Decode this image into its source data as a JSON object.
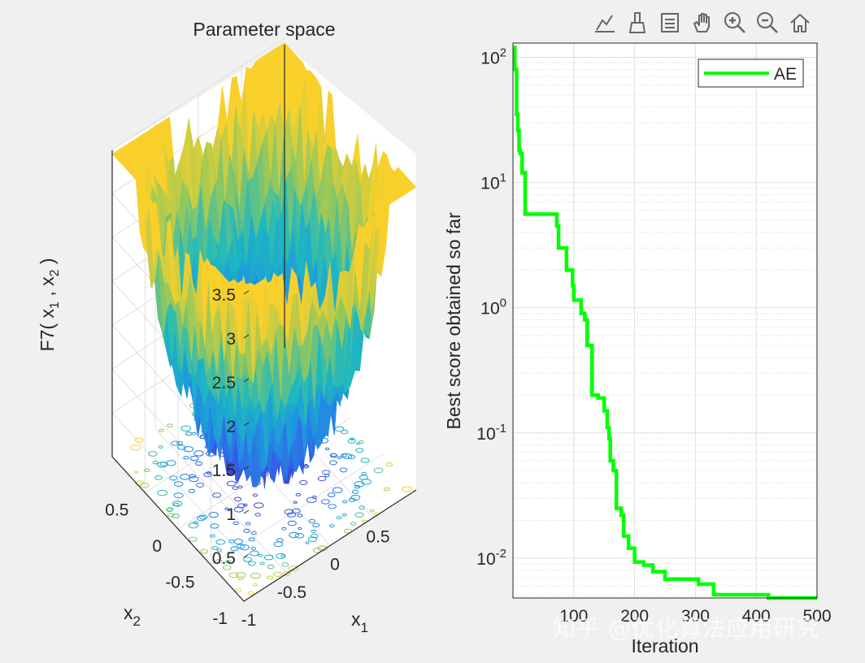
{
  "toolbar": {
    "items": [
      {
        "icon": "data-tips-icon"
      },
      {
        "icon": "brush-icon"
      },
      {
        "icon": "legend-toggle-icon"
      },
      {
        "icon": "pan-hand-icon"
      },
      {
        "icon": "zoom-in-icon"
      },
      {
        "icon": "zoom-out-icon"
      },
      {
        "icon": "home-icon"
      }
    ]
  },
  "watermark": "知乎 @优化算法应用研究",
  "colors": {
    "curve": "#00ff00",
    "axes": "#262626",
    "grid": "#dfdfdf",
    "surface_low": "#3e26a8",
    "surface_mid": "#1fb0e0",
    "surface_high": "#f9d02b"
  },
  "chart_data": [
    {
      "type": "surface",
      "title": "Parameter space",
      "zlabel": "F7( x",
      "zlabel_parts": {
        "a": "F7( x",
        "s1": "1",
        "b": " , x",
        "s2": "2",
        "c": " )"
      },
      "xlabel": "x",
      "xlabel_sub": "1",
      "ylabel": "x",
      "ylabel_sub": "2",
      "zlim": [
        0,
        3.5
      ],
      "z_ticks": [
        "0.5",
        "1",
        "1.5",
        "2",
        "2.5",
        "3",
        "3.5"
      ],
      "x_ticks": [
        "-1",
        "-0.5",
        "0",
        "0.5"
      ],
      "y_ticks": [
        "-1",
        "-0.5",
        "0",
        "0.5"
      ],
      "xlim": [
        -1,
        1
      ],
      "ylim": [
        -1,
        1
      ],
      "description_function": "noisy quartic bowl, min near 0, max ~3.5 at corners"
    },
    {
      "type": "line",
      "yscale": "log",
      "xlabel": "Iteration",
      "ylabel": "Best score obtained so far",
      "xlim": [
        0,
        500
      ],
      "ylim": [
        0.0048,
        130
      ],
      "x_ticks": [
        "100",
        "200",
        "300",
        "400",
        "500"
      ],
      "y_tick_base": "10",
      "y_tick_exps": [
        "2",
        "1",
        "0",
        "-1",
        "-2"
      ],
      "y_tick_values": [
        100,
        10,
        1,
        0.1,
        0.01
      ],
      "legend": [
        "AE"
      ],
      "legend_position": "top-right",
      "series": [
        {
          "name": "AE",
          "x": [
            1,
            3,
            6,
            8,
            10,
            12,
            15,
            18,
            20,
            27,
            65,
            70,
            72,
            75,
            80,
            88,
            95,
            98,
            100,
            110,
            112,
            118,
            122,
            130,
            138,
            140,
            150,
            155,
            158,
            160,
            165,
            170,
            178,
            182,
            190,
            200,
            206,
            215,
            230,
            240,
            250,
            262,
            290,
            305,
            330,
            370,
            410,
            420,
            500
          ],
          "y": [
            120,
            80,
            35,
            26,
            18,
            17,
            12,
            12,
            5.6,
            5.6,
            5.6,
            5.6,
            4.5,
            3.0,
            3.0,
            2.0,
            2.0,
            1.5,
            1.15,
            1.15,
            0.9,
            0.8,
            0.5,
            0.2,
            0.2,
            0.19,
            0.15,
            0.11,
            0.09,
            0.06,
            0.05,
            0.025,
            0.022,
            0.015,
            0.012,
            0.0093,
            0.0093,
            0.0088,
            0.0078,
            0.0078,
            0.0068,
            0.0068,
            0.0068,
            0.0062,
            0.0051,
            0.0051,
            0.0051,
            0.0048,
            0.0048
          ]
        }
      ]
    }
  ]
}
